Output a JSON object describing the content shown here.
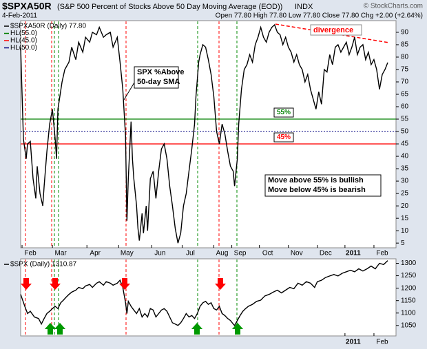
{
  "header": {
    "symbol": "$SPXA50R",
    "title": "(S&P 500 Percent of Stocks Above 50 Day Moving Average (EOD))",
    "exchange": "INDX",
    "copyright": "© StockCharts.com",
    "date": "4-Feb-2011",
    "quote": "Open 77.80 High 77.80 Low 77.80 Close 77.80 Chg +2.00 (+2.64%)"
  },
  "chart_data": [
    {
      "type": "line",
      "xlim": [
        0,
        272
      ],
      "ylim": [
        3.1,
        94.7
      ],
      "yticks": [
        5,
        10,
        15,
        20,
        25,
        30,
        35,
        40,
        45,
        50,
        55,
        60,
        65,
        70,
        75,
        80,
        85,
        90
      ],
      "xticks": [
        {
          "value": 7,
          "label": "Feb"
        },
        {
          "value": 29,
          "label": "Mar"
        },
        {
          "value": 54,
          "label": "Apr"
        },
        {
          "value": 77,
          "label": "May"
        },
        {
          "value": 101,
          "label": "Jun"
        },
        {
          "value": 123,
          "label": "Jul"
        },
        {
          "value": 146,
          "label": "Aug"
        },
        {
          "value": 159,
          "label": "Sep"
        },
        {
          "value": 179,
          "label": "Oct"
        },
        {
          "value": 200,
          "label": "Nov"
        },
        {
          "value": 221,
          "label": "Dec"
        },
        {
          "value": 241,
          "label": "2011"
        },
        {
          "value": 262,
          "label": "Feb"
        }
      ],
      "x": [
        0,
        2,
        4,
        5,
        7,
        9,
        11,
        12,
        14,
        16,
        17,
        19,
        21,
        23,
        25,
        26,
        27,
        30,
        32,
        35,
        37,
        40,
        42,
        45,
        47,
        50,
        52,
        55,
        57,
        60,
        62,
        65,
        67,
        70,
        72,
        74,
        76,
        77,
        78,
        80,
        81,
        82,
        84,
        85,
        86,
        88,
        89,
        91,
        92,
        94,
        96,
        98,
        100,
        102,
        104,
        106,
        108,
        110,
        112,
        114,
        116,
        118,
        120,
        122,
        124,
        126,
        127,
        129,
        130,
        132,
        134,
        136,
        138,
        140,
        142,
        144,
        146,
        148,
        150,
        152,
        154,
        155,
        157,
        158,
        160,
        162,
        164,
        166,
        168,
        170,
        172,
        174,
        176,
        178,
        180,
        182,
        184,
        186,
        188,
        190,
        192,
        194,
        196,
        198,
        200,
        202,
        204,
        206,
        208,
        210,
        212,
        214,
        216,
        218,
        220,
        222,
        224,
        226,
        228,
        230,
        232,
        234,
        236,
        238,
        240,
        242,
        244,
        246,
        248,
        250,
        252,
        254,
        256,
        258,
        260,
        262,
        264,
        266
      ],
      "series": [
        {
          "name": "$SPXA50R (Daily) 77.80",
          "color": "#000000",
          "values": [
            84,
            47,
            39,
            45,
            46,
            31,
            23,
            36,
            25,
            20,
            28,
            42,
            53,
            59,
            47,
            39,
            59,
            70,
            75,
            78,
            84,
            79,
            86,
            82,
            88,
            86,
            90,
            89,
            92,
            88,
            89,
            90,
            84,
            88,
            78,
            67,
            48,
            14,
            31,
            54,
            39,
            31,
            20,
            11,
            6,
            17,
            9,
            20,
            10,
            31,
            34,
            23,
            34,
            43,
            45,
            39,
            28,
            20,
            11,
            5,
            9,
            20,
            25,
            34,
            43,
            53,
            64,
            78,
            81,
            85,
            84,
            79,
            73,
            64,
            50,
            45,
            53,
            49,
            42,
            36,
            34,
            28,
            39,
            53,
            67,
            75,
            77,
            81,
            78,
            85,
            88,
            92,
            88,
            86,
            90,
            92,
            93,
            90,
            89,
            85,
            88,
            84,
            82,
            78,
            81,
            77,
            75,
            70,
            73,
            67,
            63,
            59,
            66,
            61,
            75,
            74,
            81,
            77,
            84,
            85,
            82,
            84,
            86,
            81,
            84,
            88,
            81,
            84,
            85,
            79,
            82,
            77,
            79,
            75,
            67,
            73,
            75,
            77.8
          ]
        }
      ],
      "hlines": [
        {
          "name": "HL(55.0)",
          "value": 55,
          "color": "#008000",
          "label": "55%"
        },
        {
          "name": "HL(45.0)",
          "value": 45,
          "color": "#ff0000",
          "label": "45%"
        },
        {
          "name": "HL(50.0)",
          "value": 50,
          "color": "#000080"
        }
      ],
      "annotations": [
        "divergence",
        "SPX %Above",
        "50-day SMA",
        "Move above 55% is bullish",
        "Move below 45% is bearish"
      ]
    },
    {
      "type": "line",
      "xlim": [
        0,
        272
      ],
      "ylim": [
        1008,
        1318
      ],
      "yticks": [
        1050,
        1100,
        1150,
        1200,
        1250,
        1300
      ],
      "xticks": [
        {
          "value": 241,
          "label": "2011"
        },
        {
          "value": 262,
          "label": "Feb"
        }
      ],
      "x": [
        0,
        3,
        5,
        7,
        10,
        13,
        15,
        17,
        19,
        21,
        23,
        25,
        27,
        29,
        31,
        33,
        35,
        37,
        40,
        42,
        45,
        47,
        50,
        52,
        55,
        57,
        60,
        62,
        65,
        67,
        70,
        72,
        74,
        76,
        77,
        78,
        80,
        82,
        84,
        86,
        88,
        90,
        92,
        94,
        96,
        98,
        100,
        102,
        104,
        106,
        108,
        110,
        112,
        114,
        116,
        118,
        120,
        122,
        124,
        126,
        128,
        130,
        132,
        134,
        136,
        138,
        140,
        142,
        144,
        146,
        148,
        150,
        152,
        154,
        155,
        157,
        159,
        161,
        163,
        165,
        168,
        171,
        174,
        177,
        180,
        183,
        186,
        189,
        192,
        195,
        198,
        201,
        204,
        207,
        210,
        213,
        215,
        218,
        221,
        224,
        227,
        230,
        233,
        236,
        239,
        242,
        245,
        248,
        251,
        254,
        257,
        260,
        263,
        266
      ],
      "series": [
        {
          "name": "$SPX (Daily) 1310.87",
          "color": "#000000",
          "values": [
            1175,
            1127,
            1098,
            1107,
            1084,
            1078,
            1056,
            1078,
            1098,
            1107,
            1118,
            1127,
            1118,
            1141,
            1152,
            1164,
            1175,
            1184,
            1192,
            1203,
            1198,
            1209,
            1215,
            1203,
            1220,
            1226,
            1212,
            1226,
            1220,
            1212,
            1220,
            1232,
            1203,
            1141,
            1098,
            1147,
            1127,
            1112,
            1098,
            1118,
            1084,
            1098,
            1084,
            1118,
            1112,
            1084,
            1098,
            1112,
            1118,
            1107,
            1084,
            1061,
            1056,
            1050,
            1061,
            1078,
            1098,
            1084,
            1090,
            1078,
            1098,
            1127,
            1141,
            1147,
            1135,
            1141,
            1118,
            1112,
            1127,
            1098,
            1090,
            1078,
            1070,
            1056,
            1050,
            1070,
            1090,
            1107,
            1118,
            1127,
            1135,
            1147,
            1152,
            1169,
            1175,
            1184,
            1192,
            1181,
            1192,
            1203,
            1198,
            1220,
            1212,
            1226,
            1220,
            1203,
            1226,
            1232,
            1243,
            1249,
            1255,
            1249,
            1260,
            1266,
            1272,
            1266,
            1278,
            1269,
            1278,
            1289,
            1278,
            1300,
            1295,
            1310.87
          ]
        }
      ]
    }
  ]
}
